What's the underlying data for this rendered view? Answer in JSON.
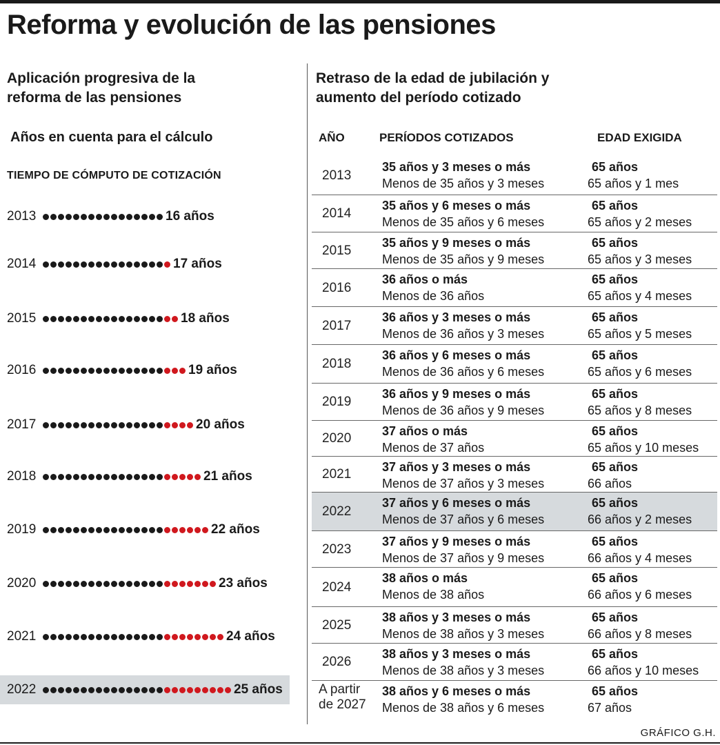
{
  "title": "Reforma y evolución de las pensiones",
  "left": {
    "subtitle_line1": "Aplicación progresiva de la",
    "subtitle_line2": "reforma de las pensiones",
    "note": "Años  en cuenta para el cálculo",
    "caption": "TIEMPO DE CÓMPUTO DE COTIZACIÓN",
    "rows": [
      {
        "year": "2013",
        "label": "16  años",
        "black": 16,
        "red": 0
      },
      {
        "year": "2014",
        "label": "17 años",
        "black": 16,
        "red": 1
      },
      {
        "year": "2015",
        "label": "18 años",
        "black": 16,
        "red": 2
      },
      {
        "year": "2016",
        "label": "19 años",
        "black": 16,
        "red": 3
      },
      {
        "year": "2017",
        "label": "20 años",
        "black": 16,
        "red": 4
      },
      {
        "year": "2018",
        "label": "21 años",
        "black": 16,
        "red": 5
      },
      {
        "year": "2019",
        "label": "22 años",
        "black": 16,
        "red": 6
      },
      {
        "year": "2020",
        "label": "23 años",
        "black": 16,
        "red": 7
      },
      {
        "year": "2021",
        "label": "24 años",
        "black": 16,
        "red": 8
      },
      {
        "year": "2022",
        "label": "25 años",
        "black": 16,
        "red": 9
      }
    ],
    "colors": {
      "black_dot": "#1a1a1a",
      "red_dot": "#d0181e",
      "highlight": "#d6dadd"
    }
  },
  "right": {
    "subtitle_line1": "Retraso de la edad de jubilación y",
    "subtitle_line2": "aumento del período cotizado",
    "headers": {
      "year": "AÑO",
      "periods": "PERÍODOS COTIZADOS",
      "age": "EDAD EXIGIDA"
    },
    "rows": [
      {
        "year": "2013",
        "p1": "35 años y 3 meses o más",
        "p2": "Menos de 35 años y 3 meses",
        "a1": "65 años",
        "a2": "65 años y 1 mes"
      },
      {
        "year": "2014",
        "p1": "35 años y 6 meses o más",
        "p2": "Menos de 35 años y 6 meses",
        "a1": "65 años",
        "a2": "65 años y 2 meses"
      },
      {
        "year": "2015",
        "p1": "35 años y 9 meses o más",
        "p2": "Menos de 35 años y 9 meses",
        "a1": "65 años",
        "a2": "65 años y 3 meses"
      },
      {
        "year": "2016",
        "p1": "36 años o más",
        "p2": "Menos de 36 años",
        "a1": "65 años",
        "a2": "65 años y 4 meses"
      },
      {
        "year": "2017",
        "p1": "36 años y 3 meses o más",
        "p2": "Menos de 36 años y 3 meses",
        "a1": "65 años",
        "a2": "65 años y 5 meses"
      },
      {
        "year": "2018",
        "p1": "36 años y 6 meses o más",
        "p2": "Menos de 36 años y 6 meses",
        "a1": "65 años",
        "a2": "65 años y 6 meses"
      },
      {
        "year": "2019",
        "p1": "36 años y 9 meses o más",
        "p2": "Menos de 36 años y 9 meses",
        "a1": "65 años",
        "a2": "65 años y 8 meses"
      },
      {
        "year": "2020",
        "p1": "37 años o más",
        "p2": "Menos de 37 años",
        "a1": "65 años",
        "a2": "65 años y 10 meses"
      },
      {
        "year": "2021",
        "p1": "37 años y 3 meses o más",
        "p2": "Menos de 37 años y 3 meses",
        "a1": "65 años",
        "a2": "66 años"
      },
      {
        "year": "2022",
        "p1": "37 años y 6 meses o más",
        "p2": "Menos de 37 años y 6 meses",
        "a1": "65 años",
        "a2": "66 años y 2 meses"
      },
      {
        "year": "2023",
        "p1": "37 años y 9 meses o más",
        "p2": "Menos de 37 años y 9 meses",
        "a1": "65 años",
        "a2": "66 años y 4 meses"
      },
      {
        "year": "2024",
        "p1": "38 años o más",
        "p2": "Menos de 38 años",
        "a1": "65 años",
        "a2": "66 años y 6 meses"
      },
      {
        "year": "2025",
        "p1": "38 años y 3 meses o más",
        "p2": "Menos de 38 años y 3 meses",
        "a1": "65 años",
        "a2": "66 años y 8 meses"
      },
      {
        "year": "2026",
        "p1": "38 años y 3 meses o más",
        "p2": "Menos de 38 años y 3 meses",
        "a1": "65 años",
        "a2": "66 años y 10 meses"
      },
      {
        "year": "A partir de 2027",
        "p1": "38 años y 6 meses o más",
        "p2": "Menos de 38 años y 6 meses",
        "a1": "65 años",
        "a2": "67 años"
      }
    ]
  },
  "credit": "GRÁFICO    G.H."
}
